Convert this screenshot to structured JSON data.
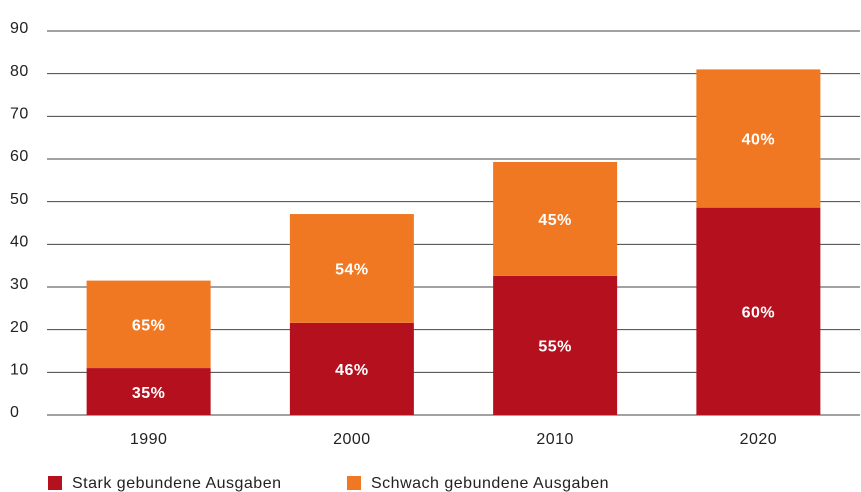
{
  "chart_data": {
    "type": "stacked_bar",
    "categories": [
      "1990",
      "2000",
      "2010",
      "2020"
    ],
    "series": [
      {
        "name": "Stark gebundene Ausgaben",
        "color": "#b5101e",
        "values": [
          11,
          21.6,
          32.6,
          48.6
        ],
        "value_labels": [
          "35%",
          "46%",
          "55%",
          "60%"
        ]
      },
      {
        "name": "Schwach gebundene Ausgaben",
        "color": "#f07822",
        "values": [
          20.5,
          25.5,
          26.7,
          32.4
        ],
        "value_labels": [
          "65%",
          "54%",
          "45%",
          "40%"
        ]
      }
    ],
    "ylim": [
      0,
      90
    ],
    "yticks": [
      0,
      10,
      20,
      30,
      40,
      50,
      60,
      70,
      80,
      90
    ],
    "grid": true,
    "legend": "bottom"
  }
}
